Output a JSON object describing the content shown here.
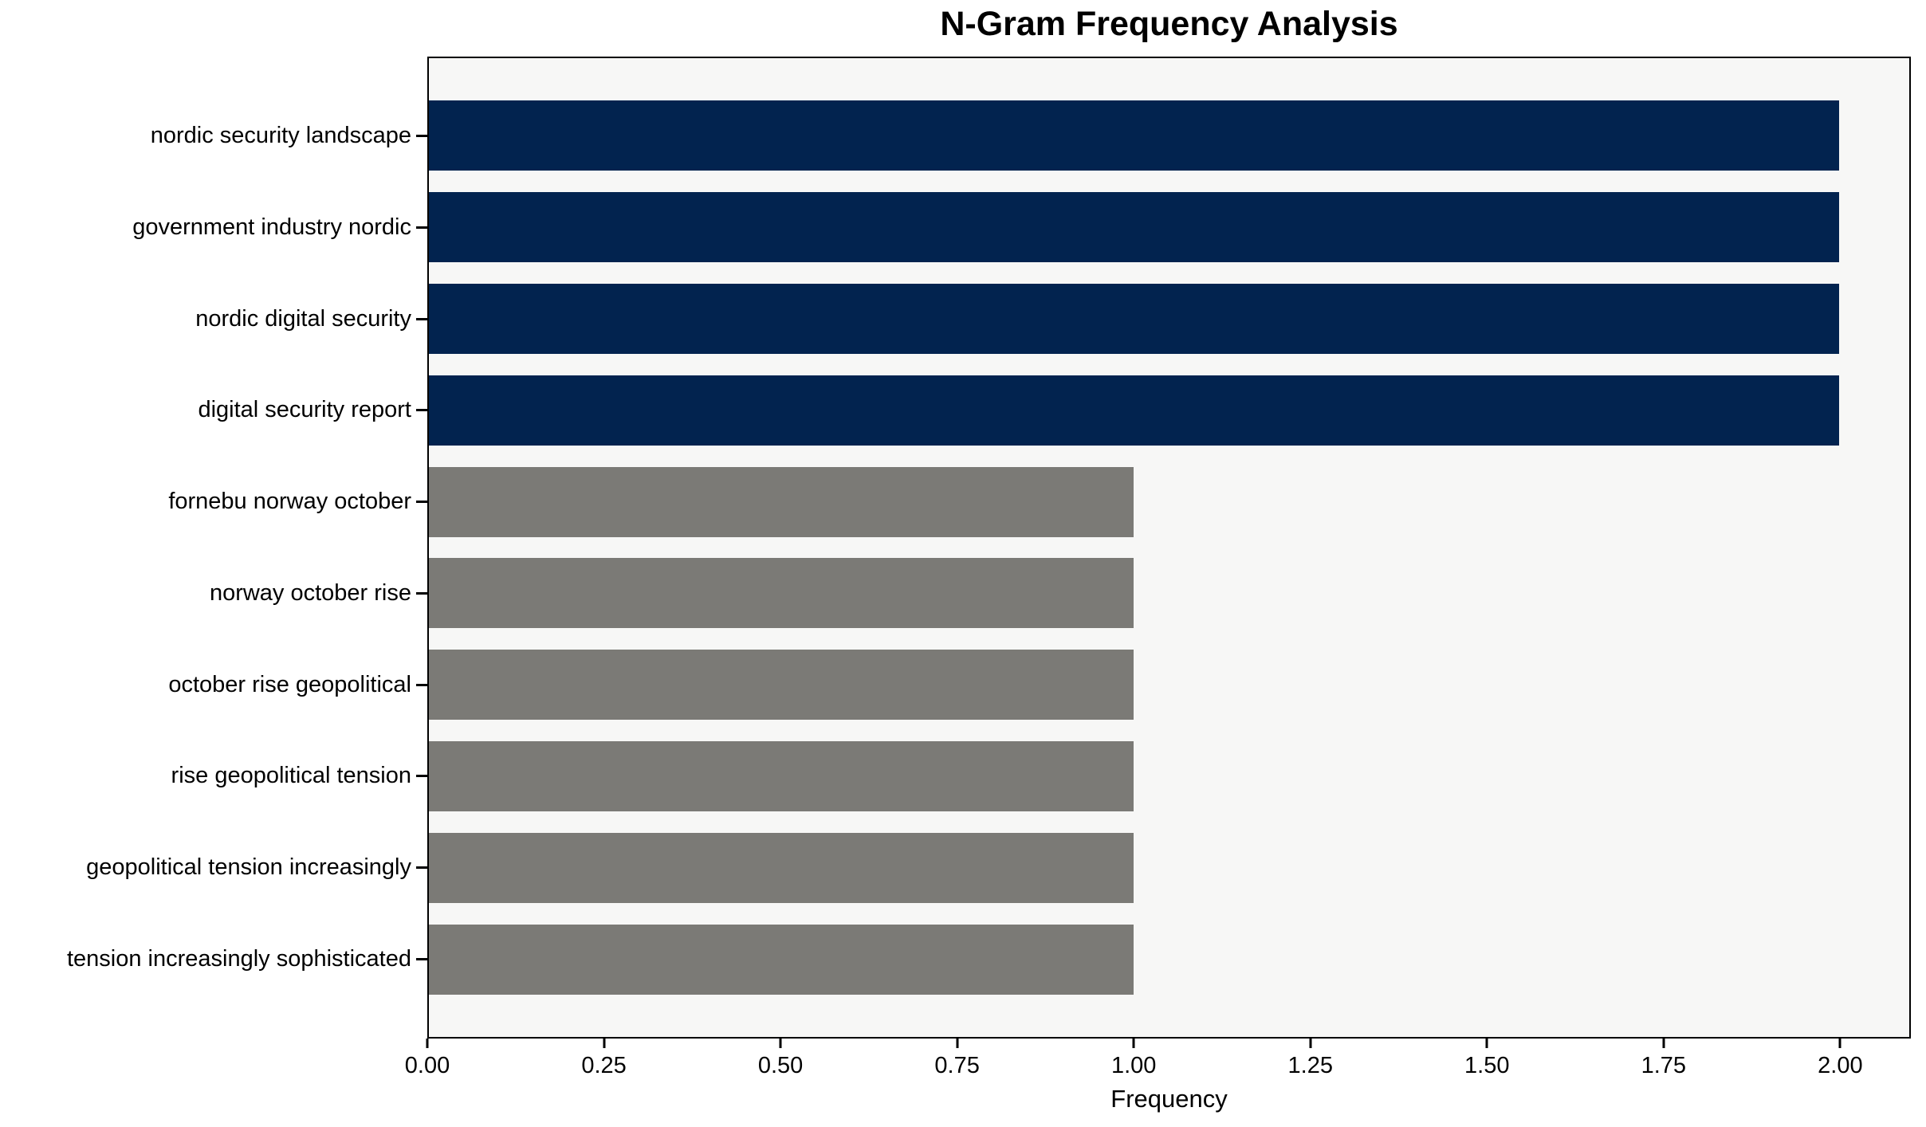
{
  "chart_data": {
    "type": "bar",
    "orientation": "horizontal",
    "title": "N-Gram Frequency Analysis",
    "xlabel": "Frequency",
    "ylabel": "",
    "categories": [
      "nordic security landscape",
      "government industry nordic",
      "nordic digital security",
      "digital security report",
      "fornebu norway october",
      "norway october rise",
      "october rise geopolitical",
      "rise geopolitical tension",
      "geopolitical tension increasingly",
      "tension increasingly sophisticated"
    ],
    "values": [
      2,
      2,
      2,
      2,
      1,
      1,
      1,
      1,
      1,
      1
    ],
    "bar_colors": [
      "#02234f",
      "#02234f",
      "#02234f",
      "#02234f",
      "#7b7a76",
      "#7b7a76",
      "#7b7a76",
      "#7b7a76",
      "#7b7a76",
      "#7b7a76"
    ],
    "xlim": [
      0,
      2.1
    ],
    "xtick_values": [
      0,
      0.25,
      0.5,
      0.75,
      1.0,
      1.25,
      1.5,
      1.75,
      2.0
    ],
    "xtick_labels": [
      "0.00",
      "0.25",
      "0.50",
      "0.75",
      "1.00",
      "1.25",
      "1.50",
      "1.75",
      "2.00"
    ],
    "grid": false,
    "legend": null,
    "colors": {
      "high_frequency_bar": "#02234f",
      "low_frequency_bar": "#7b7a76",
      "plot_background": "#f7f7f6",
      "figure_background": "#ffffff",
      "axis_line": "#000000",
      "text": "#000000"
    }
  }
}
